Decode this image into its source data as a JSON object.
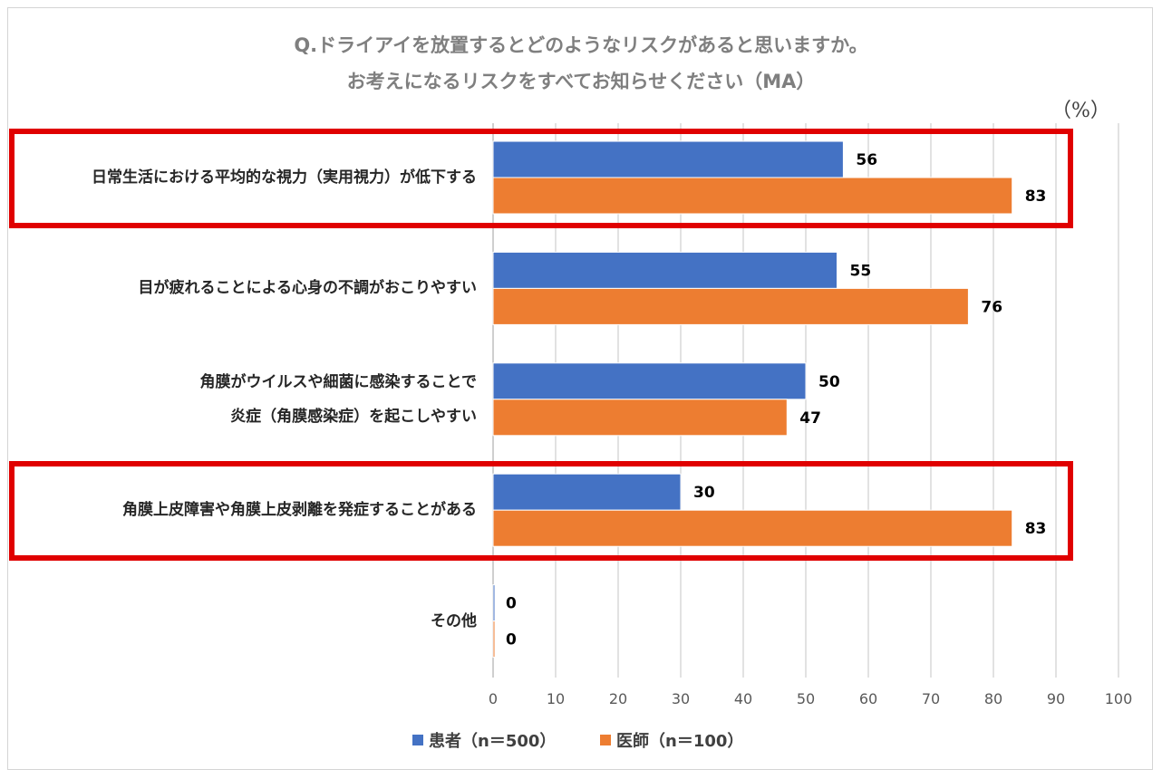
{
  "chart_data": {
    "type": "bar",
    "orientation": "horizontal",
    "title_lines": [
      "Q.ドライアイを放置するとどのようなリスクがあると思いますか。",
      "お考えになるリスクをすべてお知らせください（MA）"
    ],
    "unit_label": "（%）",
    "categories": [
      [
        "日常生活における平均的な視力（実用視力）が低下する"
      ],
      [
        "目が疲れることによる心身の不調がおこりやすい"
      ],
      [
        "角膜がウイルスや細菌に感染することで",
        "炎症（角膜感染症）を起こしやすい"
      ],
      [
        "角膜上皮障害や角膜上皮剥離を発症することがある"
      ],
      [
        "その他"
      ]
    ],
    "series": [
      {
        "name": "患者（n＝500）",
        "color": "#4472c4",
        "values": [
          56,
          55,
          50,
          30,
          0
        ]
      },
      {
        "name": "医師（n＝100）",
        "color": "#ed7d31",
        "values": [
          83,
          76,
          47,
          83,
          0
        ]
      }
    ],
    "xlim": [
      0,
      100
    ],
    "xticks": [
      0,
      10,
      20,
      30,
      40,
      50,
      60,
      70,
      80,
      90,
      100
    ],
    "highlighted_categories": [
      0,
      3
    ],
    "highlight_color": "#e00000",
    "grid": true,
    "legend_position": "bottom"
  }
}
